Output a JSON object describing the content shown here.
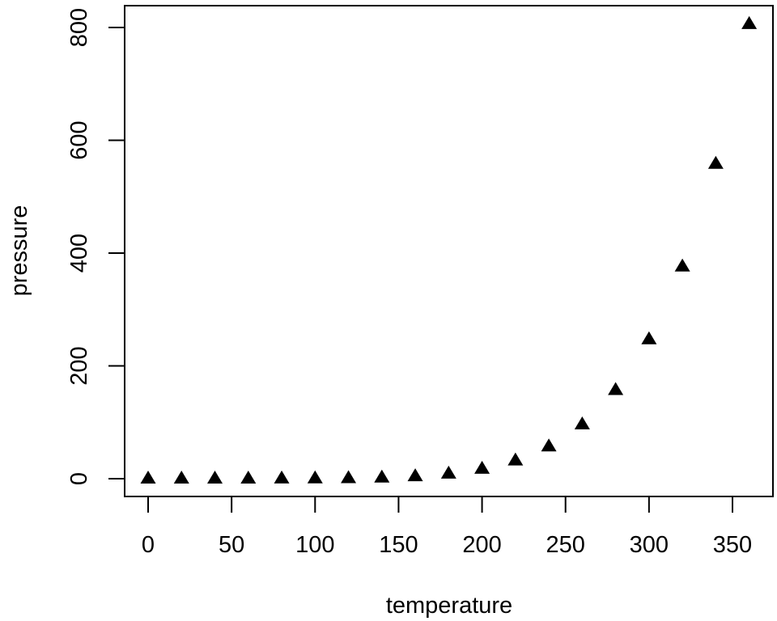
{
  "chart_data": {
    "type": "scatter",
    "title": "",
    "xlabel": "temperature",
    "ylabel": "pressure",
    "marker": "filled-triangle",
    "marker_color": "#000000",
    "xlim": [
      0,
      360
    ],
    "ylim": [
      0,
      806
    ],
    "grid": false,
    "legend": null,
    "x_ticks": [
      0,
      50,
      100,
      150,
      200,
      250,
      300,
      350
    ],
    "x_tick_labels": [
      "0",
      "50",
      "100",
      "150",
      "200",
      "250",
      "300",
      "350"
    ],
    "y_ticks": [
      0,
      200,
      400,
      600,
      800
    ],
    "y_tick_labels": [
      "0",
      "200",
      "400",
      "600",
      "800"
    ],
    "series": [
      {
        "name": "pressure",
        "x": [
          0,
          20,
          40,
          60,
          80,
          100,
          120,
          140,
          160,
          180,
          200,
          220,
          240,
          260,
          280,
          300,
          320,
          340,
          360
        ],
        "y": [
          0.0002,
          0.0012,
          0.006,
          0.03,
          0.09,
          0.27,
          0.75,
          1.85,
          4.2,
          8.8,
          17.3,
          32.1,
          57,
          96,
          157,
          247,
          376,
          558,
          806
        ]
      }
    ]
  }
}
